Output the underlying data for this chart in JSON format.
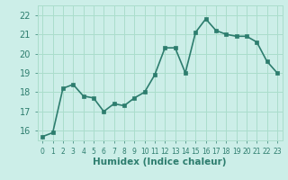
{
  "x": [
    0,
    1,
    2,
    3,
    4,
    5,
    6,
    7,
    8,
    9,
    10,
    11,
    12,
    13,
    14,
    15,
    16,
    17,
    18,
    19,
    20,
    21,
    22,
    23
  ],
  "y": [
    15.7,
    15.9,
    18.2,
    18.4,
    17.8,
    17.7,
    17.0,
    17.4,
    17.3,
    17.7,
    18.0,
    18.9,
    20.3,
    20.3,
    19.0,
    21.1,
    21.8,
    21.2,
    21.0,
    20.9,
    20.9,
    20.6,
    19.6,
    19.0
  ],
  "line_color": "#2d7d6e",
  "marker": "s",
  "marker_size": 2.5,
  "bg_color": "#cceee8",
  "grid_color": "#aaddcc",
  "xlabel": "Humidex (Indice chaleur)",
  "ylim": [
    15.5,
    22.5
  ],
  "xlim": [
    -0.5,
    23.5
  ],
  "yticks": [
    16,
    17,
    18,
    19,
    20,
    21,
    22
  ],
  "xticks": [
    0,
    1,
    2,
    3,
    4,
    5,
    6,
    7,
    8,
    9,
    10,
    11,
    12,
    13,
    14,
    15,
    16,
    17,
    18,
    19,
    20,
    21,
    22,
    23
  ],
  "text_color": "#2d7d6e",
  "xlabel_fontsize": 7.5,
  "ytick_fontsize": 7,
  "xtick_fontsize": 5.5,
  "line_width": 1.2
}
